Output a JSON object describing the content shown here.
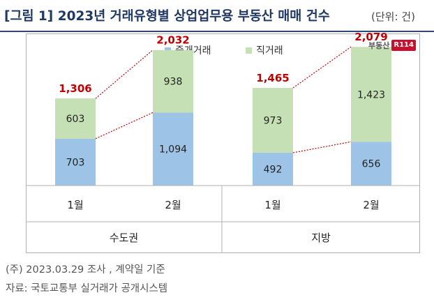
{
  "title": "[그림 1] 2023년 거래유형별 상업업무용 부동산 매매 건수",
  "unit": "(단위: 건)",
  "logo": {
    "text": "부동산",
    "badge": "R114"
  },
  "chart_data": {
    "type": "bar",
    "stacked": true,
    "legend": [
      "중개거래",
      "직거래"
    ],
    "groups": [
      {
        "name": "수도권",
        "months": [
          {
            "label": "1월",
            "brokered": 703,
            "direct": 603,
            "total": "1,306"
          },
          {
            "label": "2월",
            "brokered": "1,094",
            "direct": 938,
            "total": "2,032"
          }
        ]
      },
      {
        "name": "지방",
        "months": [
          {
            "label": "1월",
            "brokered": 492,
            "direct": 973,
            "total": "1,465"
          },
          {
            "label": "2월",
            "brokered": 656,
            "direct": "1,423",
            "total": "2,079"
          }
        ]
      }
    ],
    "colors": {
      "brokered": "#9dc3e6",
      "direct": "#c5e0b4",
      "total_label": "#c00000",
      "dotted_line": "#c00000"
    }
  },
  "notes": [
    "(주) 2023.03.29 조사 , 계약일 기준",
    "자료: 국토교통부 실거래가 공개시스템"
  ]
}
